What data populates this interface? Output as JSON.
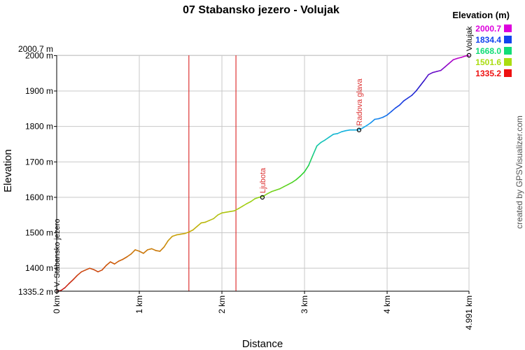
{
  "chart_data": {
    "type": "line",
    "title": "07 Stabansko jezero - Volujak",
    "xlabel": "Distance",
    "ylabel": "Elevation",
    "x_unit": "km",
    "y_unit": "m",
    "xlim": [
      0,
      4.991
    ],
    "ylim": [
      1335.2,
      2000.7
    ],
    "x_ticks": [
      "0 km",
      "1 km",
      "2 km",
      "3 km",
      "4 km",
      "4.991 km"
    ],
    "y_ticks": [
      "1335.2 m",
      "1400 m",
      "1500 m",
      "1600 m",
      "1700 m",
      "1800 m",
      "1900 m",
      "2000 m",
      "2000.7 m"
    ],
    "series": [
      {
        "name": "",
        "x": [
          0,
          0.05,
          0.1,
          0.15,
          0.2,
          0.25,
          0.3,
          0.35,
          0.4,
          0.45,
          0.5,
          0.55,
          0.6,
          0.65,
          0.7,
          0.75,
          0.8,
          0.85,
          0.9,
          0.95,
          1.0,
          1.05,
          1.1,
          1.15,
          1.2,
          1.25,
          1.3,
          1.35,
          1.4,
          1.45,
          1.5,
          1.55,
          1.6,
          1.65,
          1.7,
          1.75,
          1.8,
          1.85,
          1.9,
          1.95,
          2.0,
          2.05,
          2.1,
          2.15,
          2.2,
          2.25,
          2.3,
          2.35,
          2.4,
          2.45,
          2.5,
          2.55,
          2.6,
          2.65,
          2.7,
          2.75,
          2.8,
          2.85,
          2.9,
          2.95,
          3.0,
          3.05,
          3.1,
          3.15,
          3.2,
          3.25,
          3.3,
          3.35,
          3.4,
          3.45,
          3.5,
          3.55,
          3.6,
          3.65,
          3.7,
          3.75,
          3.8,
          3.85,
          3.9,
          3.95,
          4.0,
          4.05,
          4.1,
          4.15,
          4.2,
          4.25,
          4.3,
          4.35,
          4.4,
          4.45,
          4.5,
          4.55,
          4.6,
          4.65,
          4.7,
          4.75,
          4.8,
          4.85,
          4.9,
          4.95,
          4.991
        ],
        "y": [
          1335,
          1337,
          1345,
          1357,
          1368,
          1380,
          1390,
          1395,
          1400,
          1396,
          1390,
          1395,
          1408,
          1418,
          1412,
          1420,
          1425,
          1432,
          1440,
          1452,
          1448,
          1442,
          1452,
          1455,
          1450,
          1448,
          1460,
          1478,
          1490,
          1494,
          1496,
          1498,
          1502,
          1508,
          1518,
          1528,
          1530,
          1535,
          1540,
          1550,
          1556,
          1558,
          1560,
          1562,
          1568,
          1575,
          1582,
          1588,
          1596,
          1600,
          1603,
          1610,
          1616,
          1620,
          1624,
          1630,
          1636,
          1642,
          1650,
          1660,
          1672,
          1690,
          1718,
          1745,
          1755,
          1762,
          1770,
          1778,
          1780,
          1785,
          1788,
          1790,
          1790,
          1790,
          1795,
          1802,
          1810,
          1820,
          1822,
          1826,
          1832,
          1842,
          1852,
          1860,
          1872,
          1880,
          1888,
          1900,
          1915,
          1930,
          1946,
          1952,
          1955,
          1958,
          1968,
          1978,
          1988,
          1992,
          1995,
          1999,
          2000
        ]
      }
    ],
    "waypoints": [
      {
        "name": "V. Stabansko jezero",
        "x": 0,
        "y": 1335.2
      },
      {
        "name": "Ljubota",
        "x": 2.49,
        "y": 1600
      },
      {
        "name": "Radova glava",
        "x": 3.66,
        "y": 1790
      },
      {
        "name": "Volujak",
        "x": 4.991,
        "y": 2000.7
      }
    ],
    "markers_x": [
      1.6,
      2.17
    ],
    "legend": {
      "title": "Elevation (m)",
      "placement": "top-right",
      "entries": [
        {
          "label": "2000.7",
          "color": "#dd00dd"
        },
        {
          "label": "1834.4",
          "color": "#1144ee"
        },
        {
          "label": "1668.0",
          "color": "#11dd77"
        },
        {
          "label": "1501.6",
          "color": "#aadd11"
        },
        {
          "label": "1335.2",
          "color": "#ee1111"
        }
      ]
    },
    "grid": true,
    "colors": {
      "grid": "#c8c8c8",
      "axis": "#000000",
      "marker_line": "#dd3333",
      "waypoint_label": "#dd3333"
    }
  },
  "credit": "created by GPSVisualizer.com"
}
